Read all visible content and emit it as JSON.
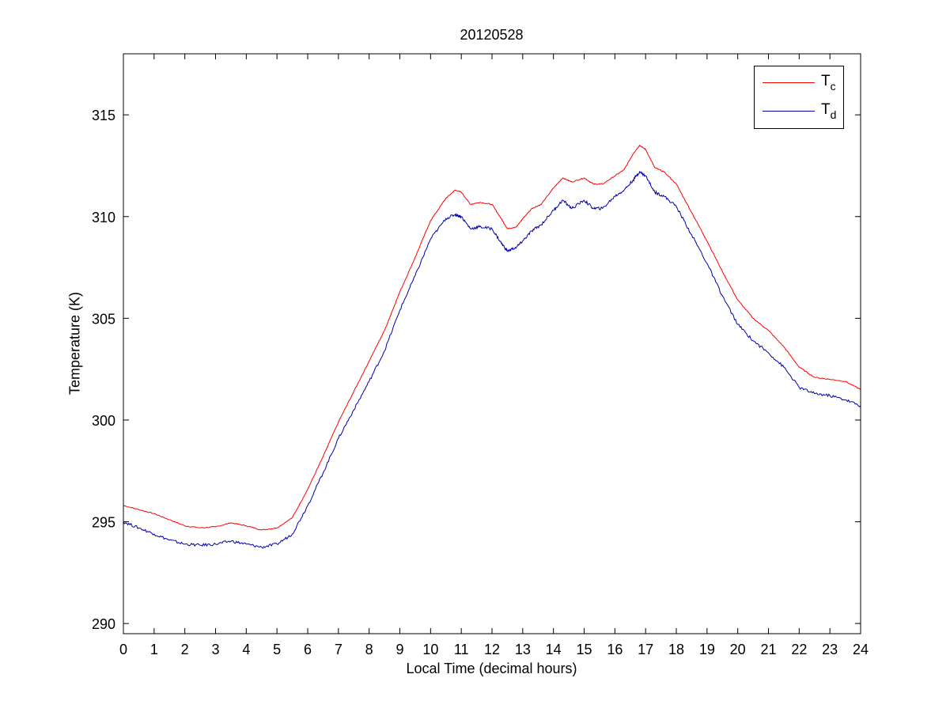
{
  "chart_data": {
    "type": "line",
    "title": "20120528",
    "xlabel": "Local Time (decimal hours)",
    "ylabel": "Temperature (K)",
    "xlim": [
      0,
      24
    ],
    "ylim": [
      289.5,
      318
    ],
    "xticks": [
      0,
      1,
      2,
      3,
      4,
      5,
      6,
      7,
      8,
      9,
      10,
      11,
      12,
      13,
      14,
      15,
      16,
      17,
      18,
      19,
      20,
      21,
      22,
      23,
      24
    ],
    "yticks": [
      290,
      295,
      300,
      305,
      310,
      315
    ],
    "grid": false,
    "legend_position": "top-right",
    "series": [
      {
        "name": "T",
        "subscript": "c",
        "color": "#ff0000",
        "x": [
          0,
          0.5,
          1,
          1.5,
          2,
          2.5,
          3,
          3.5,
          4,
          4.5,
          5,
          5.5,
          6,
          6.5,
          7,
          7.5,
          8,
          8.5,
          9,
          9.5,
          10,
          10.5,
          10.8,
          11,
          11.3,
          11.6,
          12,
          12.3,
          12.5,
          12.8,
          13,
          13.3,
          13.6,
          14,
          14.3,
          14.6,
          15,
          15.3,
          15.6,
          16,
          16.3,
          16.6,
          16.8,
          17,
          17.3,
          17.6,
          18,
          18.5,
          19,
          19.5,
          20,
          20.5,
          21,
          21.5,
          22,
          22.5,
          23,
          23.5,
          24
        ],
        "y": [
          295.8,
          295.6,
          295.4,
          295.1,
          294.8,
          294.7,
          294.75,
          294.95,
          294.8,
          294.6,
          294.7,
          295.2,
          296.6,
          298.2,
          299.9,
          301.4,
          302.9,
          304.4,
          306.3,
          308.0,
          309.8,
          310.9,
          311.3,
          311.2,
          310.6,
          310.7,
          310.6,
          309.9,
          309.4,
          309.5,
          309.9,
          310.4,
          310.6,
          311.4,
          311.9,
          311.7,
          311.9,
          311.6,
          311.6,
          312.0,
          312.3,
          313.1,
          313.5,
          313.3,
          312.4,
          312.2,
          311.6,
          310.2,
          308.8,
          307.3,
          305.9,
          305.0,
          304.4,
          303.6,
          302.6,
          302.1,
          302.0,
          301.9,
          301.5
        ]
      },
      {
        "name": "T",
        "subscript": "d",
        "color": "#0000aa",
        "x": [
          0,
          0.5,
          1,
          1.5,
          2,
          2.5,
          3,
          3.5,
          4,
          4.5,
          5,
          5.5,
          6,
          6.5,
          7,
          7.5,
          8,
          8.5,
          9,
          9.5,
          10,
          10.5,
          10.8,
          11,
          11.3,
          11.6,
          12,
          12.3,
          12.5,
          12.8,
          13,
          13.3,
          13.6,
          14,
          14.3,
          14.6,
          15,
          15.3,
          15.6,
          16,
          16.3,
          16.6,
          16.8,
          17,
          17.3,
          17.6,
          18,
          18.5,
          19,
          19.5,
          20,
          20.5,
          21,
          21.5,
          22,
          22.5,
          23,
          23.5,
          24
        ],
        "y": [
          295.0,
          294.7,
          294.4,
          294.1,
          293.9,
          293.85,
          293.9,
          294.05,
          293.9,
          293.75,
          293.9,
          294.4,
          295.8,
          297.4,
          299.1,
          300.5,
          301.9,
          303.4,
          305.4,
          307.1,
          308.9,
          309.9,
          310.1,
          310.0,
          309.4,
          309.5,
          309.4,
          308.7,
          308.3,
          308.5,
          308.8,
          309.3,
          309.6,
          310.3,
          310.8,
          310.4,
          310.8,
          310.4,
          310.4,
          311.0,
          311.3,
          311.8,
          312.2,
          312.0,
          311.2,
          311.0,
          310.5,
          309.1,
          307.7,
          306.1,
          304.7,
          303.9,
          303.3,
          302.6,
          301.6,
          301.3,
          301.2,
          301.0,
          300.7
        ]
      }
    ]
  }
}
